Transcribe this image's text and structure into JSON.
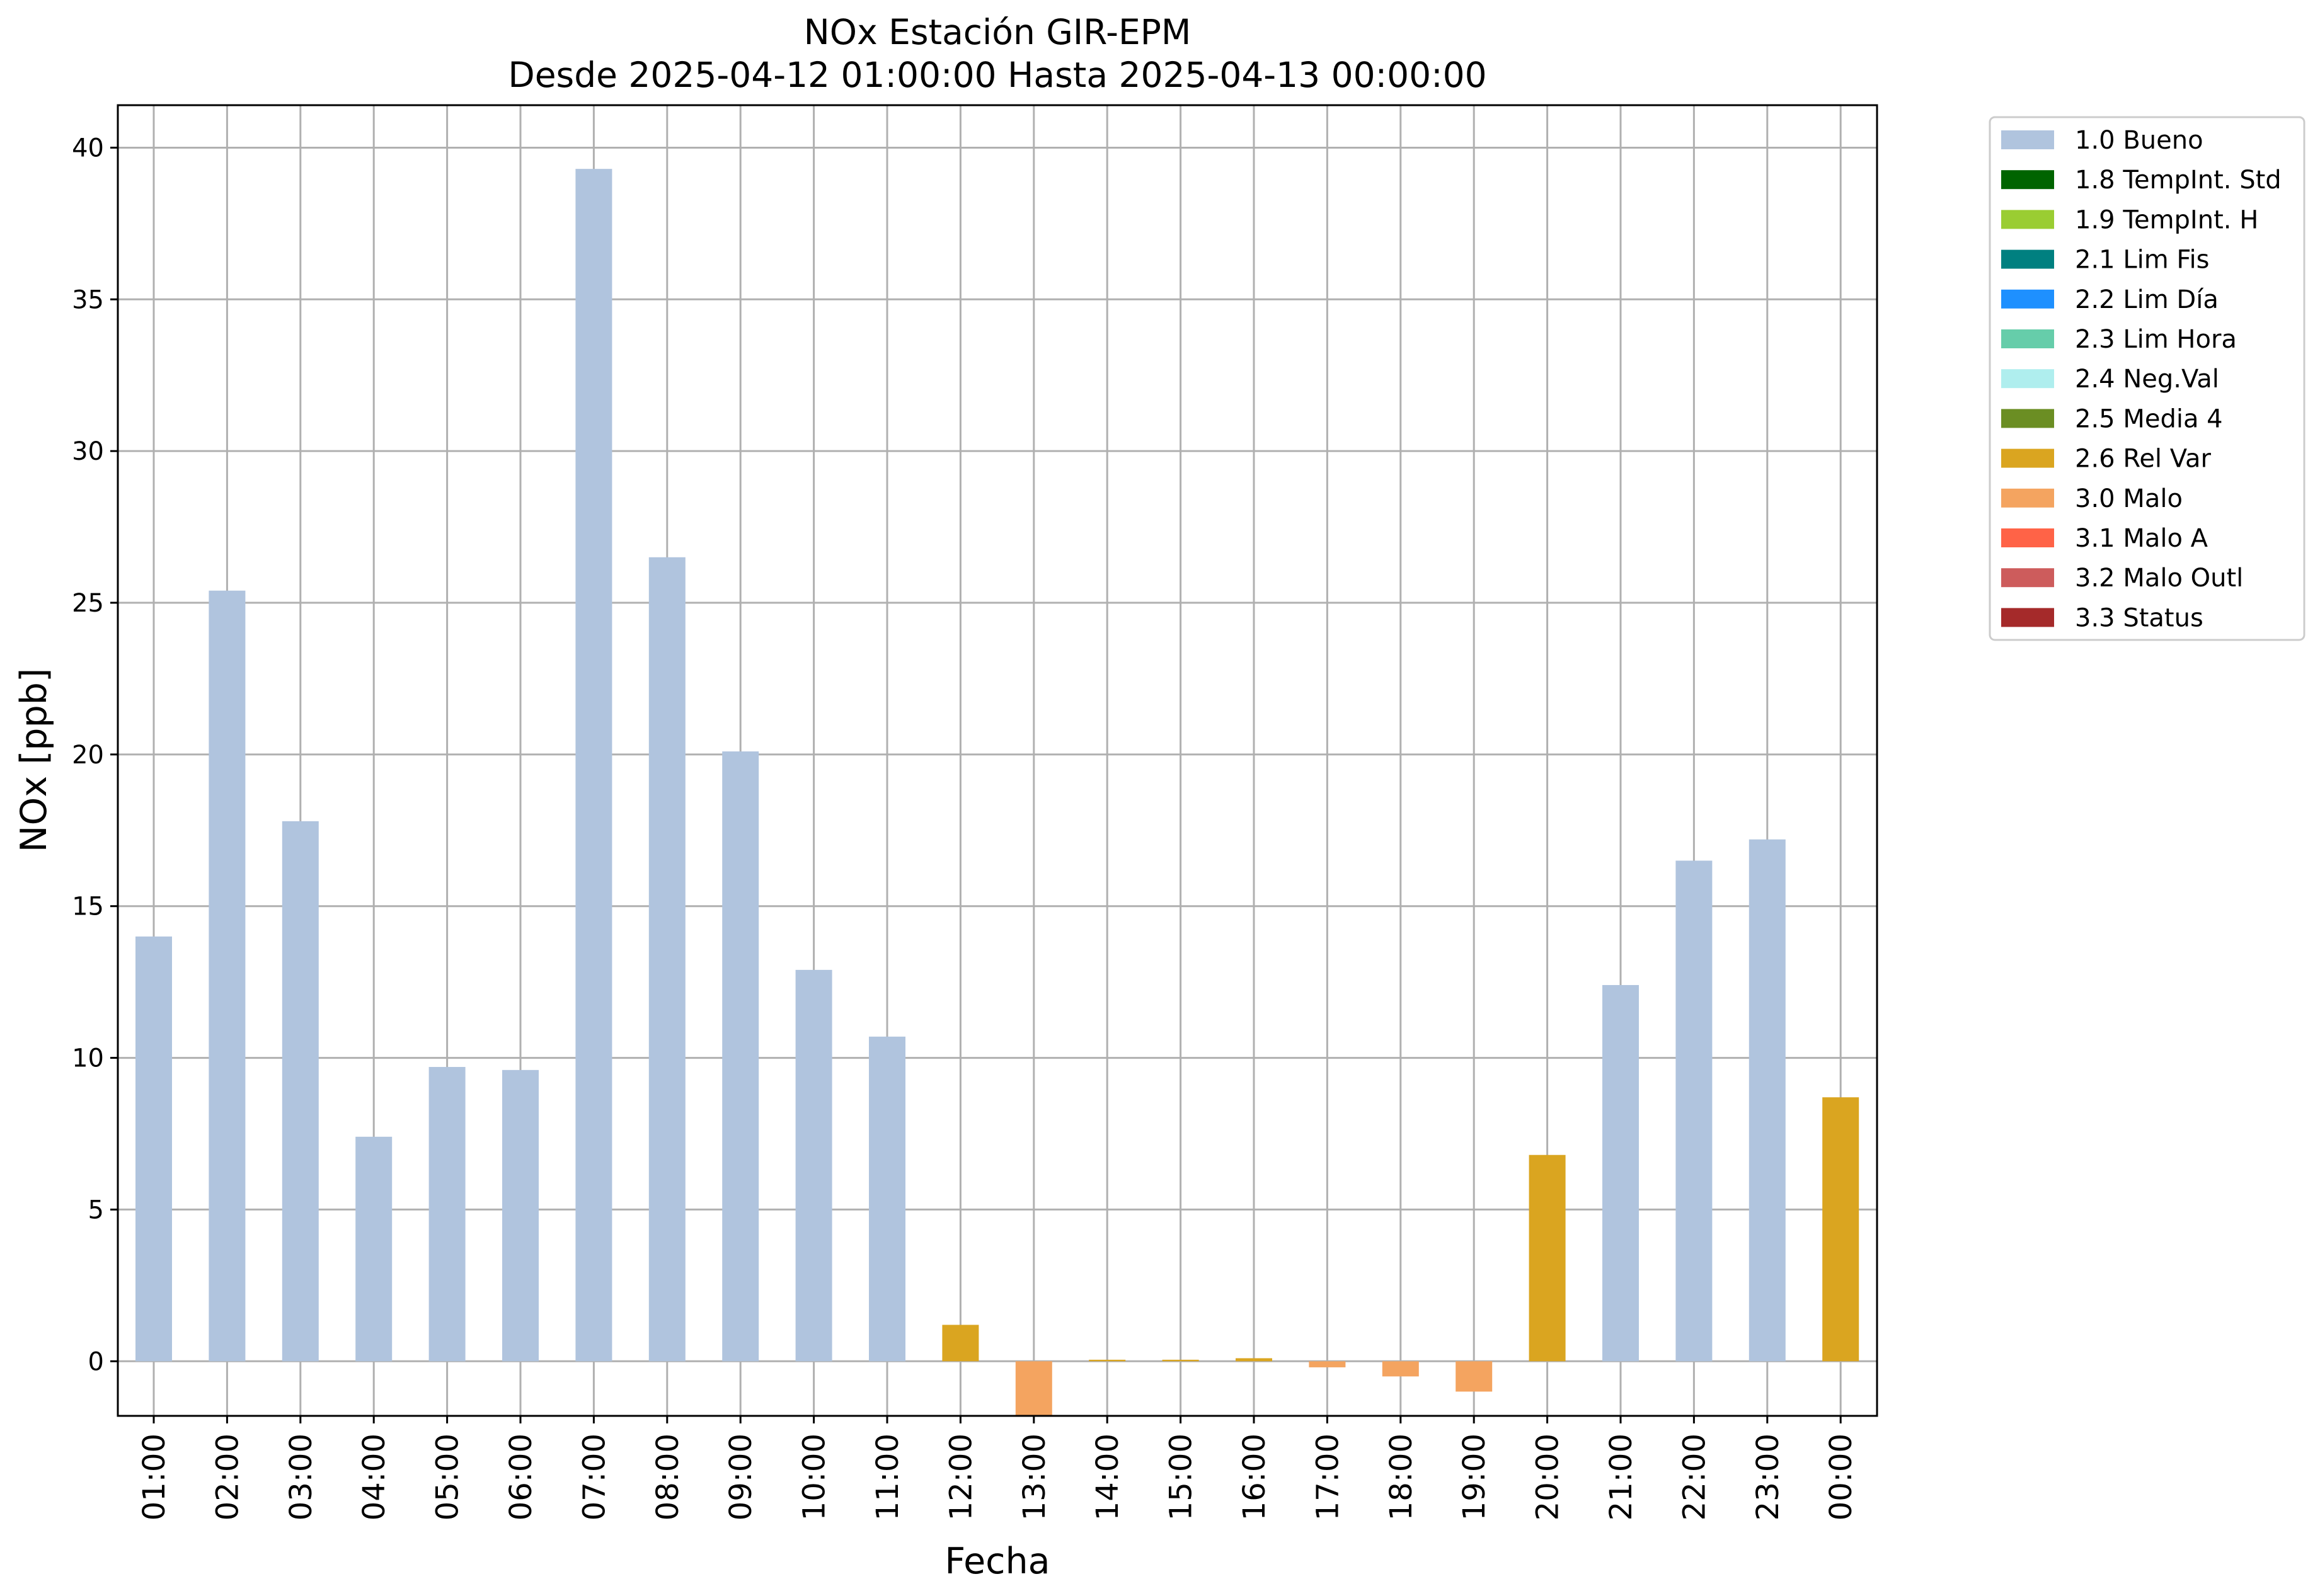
{
  "chart_data": {
    "type": "bar",
    "title": "NOx Estación GIR-EPM",
    "subtitle": "Desde 2025-04-12 01:00:00 Hasta 2025-04-13 00:00:00",
    "xlabel": "Fecha",
    "ylabel": "NOx [ppb]",
    "ylim": [
      -1.8,
      41.4
    ],
    "yticks": [
      0,
      5,
      10,
      15,
      20,
      25,
      30,
      35,
      40
    ],
    "grid": true,
    "legend_position": "outside-top-right",
    "categories": [
      "01:00",
      "02:00",
      "03:00",
      "04:00",
      "05:00",
      "06:00",
      "07:00",
      "08:00",
      "09:00",
      "10:00",
      "11:00",
      "12:00",
      "13:00",
      "14:00",
      "15:00",
      "16:00",
      "17:00",
      "18:00",
      "19:00",
      "20:00",
      "21:00",
      "22:00",
      "23:00",
      "00:00"
    ],
    "values": [
      14.0,
      25.4,
      17.8,
      7.4,
      9.7,
      9.6,
      39.3,
      26.5,
      20.1,
      12.9,
      10.7,
      1.2,
      -1.9,
      0.05,
      0.05,
      0.1,
      -0.2,
      -0.5,
      -1.0,
      6.8,
      12.4,
      16.5,
      17.2,
      8.7
    ],
    "flags": [
      "1.0 Bueno",
      "1.0 Bueno",
      "1.0 Bueno",
      "1.0 Bueno",
      "1.0 Bueno",
      "1.0 Bueno",
      "1.0 Bueno",
      "1.0 Bueno",
      "1.0 Bueno",
      "1.0 Bueno",
      "1.0 Bueno",
      "2.6 Rel Var",
      "3.0 Malo",
      "2.6 Rel Var",
      "2.6 Rel Var",
      "2.6 Rel Var",
      "3.0 Malo",
      "3.0 Malo",
      "3.0 Malo",
      "2.6 Rel Var",
      "1.0 Bueno",
      "1.0 Bueno",
      "1.0 Bueno",
      "2.6 Rel Var"
    ],
    "legend": [
      {
        "label": "1.0 Bueno",
        "color": "#b0c4de"
      },
      {
        "label": "1.8 TempInt. Std",
        "color": "#006400"
      },
      {
        "label": "1.9 TempInt. H",
        "color": "#9acd32"
      },
      {
        "label": "2.1 Lim Fis",
        "color": "#008080"
      },
      {
        "label": "2.2 Lim Día",
        "color": "#1e90ff"
      },
      {
        "label": "2.3 Lim Hora",
        "color": "#66cdaa"
      },
      {
        "label": "2.4 Neg.Val",
        "color": "#afeeee"
      },
      {
        "label": "2.5 Media 4",
        "color": "#6b8e23"
      },
      {
        "label": "2.6 Rel Var",
        "color": "#daa520"
      },
      {
        "label": "3.0 Malo",
        "color": "#f4a460"
      },
      {
        "label": "3.1 Malo A",
        "color": "#ff6347"
      },
      {
        "label": "3.2 Malo Outl",
        "color": "#cd5c5c"
      },
      {
        "label": "3.3 Status",
        "color": "#a52a2a"
      }
    ]
  }
}
